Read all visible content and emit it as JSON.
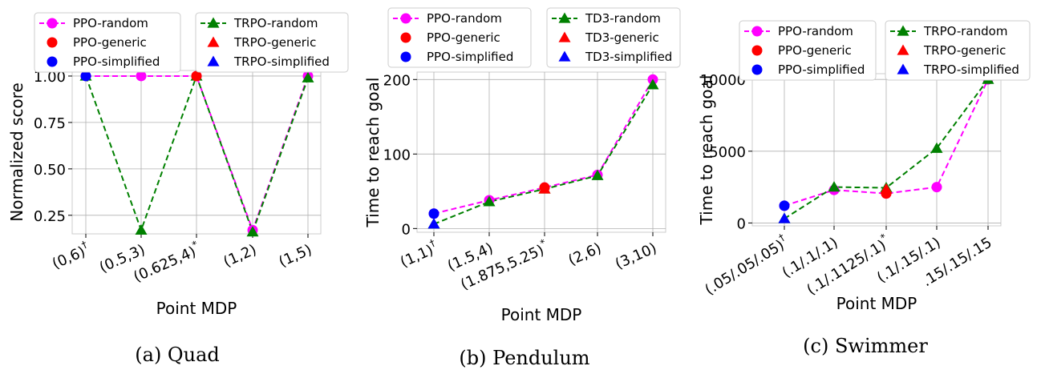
{
  "figure": {
    "captions": [
      "(a) Quad",
      "(b) Pendulum",
      "(c) Swimmer"
    ]
  },
  "colors": {
    "random_ppo": "#ff00ff",
    "random_other": "#008000",
    "generic": "#ff0000",
    "simplified": "#0000ff",
    "grid": "#b0b0b0"
  },
  "chart_data": [
    {
      "type": "line",
      "caption": "(a) Quad",
      "xlabel": "Point MDP",
      "ylabel": "Normalized score",
      "categories": [
        "(0,6)",
        "(0.5,3)",
        "(0.625,4)",
        "(1,2)",
        "(1,5)"
      ],
      "category_marks": [
        "†",
        "",
        "*",
        "",
        ""
      ],
      "ylim": [
        0.15,
        1.03
      ],
      "yticks": [
        0.25,
        0.5,
        0.75,
        1.0
      ],
      "ytick_labels": [
        "0.25",
        "0.50",
        "0.75",
        "1.00"
      ],
      "grid": true,
      "legend": [
        {
          "label": "PPO-random",
          "color": "#ff00ff",
          "marker": "circle",
          "dashed": true
        },
        {
          "label": "PPO-generic",
          "color": "#ff0000",
          "marker": "circle",
          "dashed": false
        },
        {
          "label": "PPO-simplified",
          "color": "#0000ff",
          "marker": "circle",
          "dashed": false
        },
        {
          "label": "TRPO-random",
          "color": "#008000",
          "marker": "triangle",
          "dashed": true
        },
        {
          "label": "TRPO-generic",
          "color": "#ff0000",
          "marker": "triangle",
          "dashed": false
        },
        {
          "label": "TRPO-simplified",
          "color": "#0000ff",
          "marker": "triangle",
          "dashed": false
        }
      ],
      "series": [
        {
          "name": "PPO-random",
          "marker": "circle",
          "color": "#ff00ff",
          "dashed": true,
          "values": [
            1.0,
            1.0,
            1.0,
            0.17,
            1.0
          ]
        },
        {
          "name": "TRPO-random",
          "marker": "triangle",
          "color": "#008000",
          "dashed": true,
          "values": [
            1.0,
            0.17,
            1.0,
            0.16,
            0.99
          ]
        }
      ],
      "points": [
        {
          "name": "PPO-simplified",
          "marker": "circle",
          "color": "#0000ff",
          "x": "(0,6)",
          "y": 1.0
        },
        {
          "name": "PPO-generic",
          "marker": "circle",
          "color": "#ff0000",
          "x": "(0.625,4)",
          "y": 1.0
        }
      ]
    },
    {
      "type": "line",
      "caption": "(b) Pendulum",
      "xlabel": "Point MDP",
      "ylabel": "Time to reach goal",
      "categories": [
        "(1,1)",
        "(1.5,4)",
        "(1.875,5.25)",
        "(2,6)",
        "(3,10)"
      ],
      "category_marks": [
        "†",
        "",
        "*",
        "",
        ""
      ],
      "ylim": [
        -5,
        210
      ],
      "yticks": [
        0,
        100,
        200
      ],
      "ytick_labels": [
        "0",
        "100",
        "200"
      ],
      "grid": true,
      "legend": [
        {
          "label": "PPO-random",
          "color": "#ff00ff",
          "marker": "circle",
          "dashed": true
        },
        {
          "label": "PPO-generic",
          "color": "#ff0000",
          "marker": "circle",
          "dashed": false
        },
        {
          "label": "PPO-simplified",
          "color": "#0000ff",
          "marker": "circle",
          "dashed": false
        },
        {
          "label": "TD3-random",
          "color": "#008000",
          "marker": "triangle",
          "dashed": true
        },
        {
          "label": "TD3-generic",
          "color": "#ff0000",
          "marker": "triangle",
          "dashed": false
        },
        {
          "label": "TD3-simplified",
          "color": "#0000ff",
          "marker": "triangle",
          "dashed": false
        }
      ],
      "series": [
        {
          "name": "PPO-random",
          "marker": "circle",
          "color": "#ff00ff",
          "dashed": true,
          "values": [
            20,
            38,
            55,
            72,
            200
          ]
        },
        {
          "name": "TD3-random",
          "marker": "triangle",
          "color": "#008000",
          "dashed": true,
          "values": [
            6,
            36,
            53,
            71,
            193
          ]
        }
      ],
      "points": [
        {
          "name": "PPO-simplified",
          "marker": "circle",
          "color": "#0000ff",
          "x": "(1,1)",
          "y": 20
        },
        {
          "name": "TD3-simplified",
          "marker": "triangle",
          "color": "#0000ff",
          "x": "(1,1)",
          "y": 6
        },
        {
          "name": "PPO-generic",
          "marker": "circle",
          "color": "#ff0000",
          "x": "(1.875,5.25)",
          "y": 55
        },
        {
          "name": "TD3-generic",
          "marker": "triangle",
          "color": "#ff0000",
          "x": "(1.875,5.25)",
          "y": 53
        }
      ]
    },
    {
      "type": "line",
      "caption": "(c) Swimmer",
      "xlabel": "Point MDP",
      "ylabel": "Time to reach goal",
      "categories": [
        "(.05/.05/.05)",
        "(.1/.1/.1)",
        "(.1/.1125/.1)",
        "(.1/.15/.1)",
        ".15/.15/.15"
      ],
      "category_marks": [
        "†",
        "",
        "*",
        "",
        ""
      ],
      "ylim": [
        -200,
        10400
      ],
      "yticks": [
        0,
        5000,
        10000
      ],
      "ytick_labels": [
        "0",
        "5000",
        "10000"
      ],
      "grid": true,
      "legend": [
        {
          "label": "PPO-random",
          "color": "#ff00ff",
          "marker": "circle",
          "dashed": true
        },
        {
          "label": "PPO-generic",
          "color": "#ff0000",
          "marker": "circle",
          "dashed": false
        },
        {
          "label": "PPO-simplified",
          "color": "#0000ff",
          "marker": "circle",
          "dashed": false
        },
        {
          "label": "TRPO-random",
          "color": "#008000",
          "marker": "triangle",
          "dashed": true
        },
        {
          "label": "TRPO-generic",
          "color": "#ff0000",
          "marker": "triangle",
          "dashed": false
        },
        {
          "label": "TRPO-simplified",
          "color": "#0000ff",
          "marker": "triangle",
          "dashed": false
        }
      ],
      "series": [
        {
          "name": "PPO-random",
          "marker": "circle",
          "color": "#ff00ff",
          "dashed": true,
          "values": [
            1200,
            2300,
            2050,
            2500,
            10000
          ]
        },
        {
          "name": "TRPO-random",
          "marker": "triangle",
          "color": "#008000",
          "dashed": true,
          "values": [
            300,
            2500,
            2450,
            5200,
            10000
          ]
        }
      ],
      "points": [
        {
          "name": "PPO-simplified",
          "marker": "circle",
          "color": "#0000ff",
          "x": "(.05/.05/.05)",
          "y": 1200
        },
        {
          "name": "TRPO-simplified",
          "marker": "triangle",
          "color": "#0000ff",
          "x": "(.05/.05/.05)",
          "y": 300
        },
        {
          "name": "PPO-generic",
          "marker": "circle",
          "color": "#ff0000",
          "x": "(.1/.1125/.1)",
          "y": 2050
        },
        {
          "name": "TRPO-generic",
          "marker": "triangle",
          "color": "#ff0000",
          "x": "(.1/.1125/.1)",
          "y": 2350
        }
      ]
    }
  ]
}
